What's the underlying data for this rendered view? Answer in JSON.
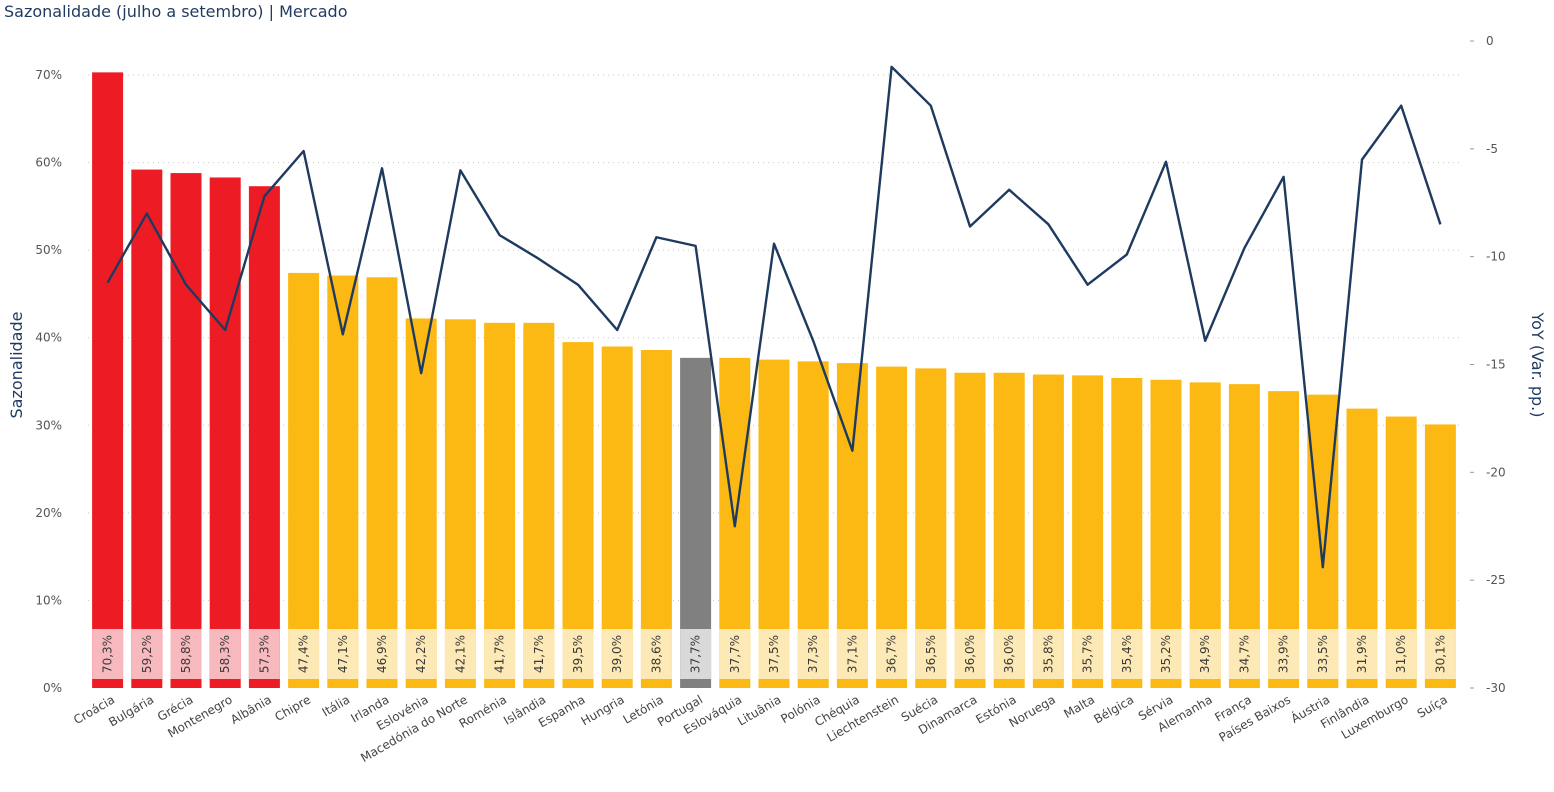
{
  "title": "Sazonalidade (julho a setembro) | Mercado",
  "colors": {
    "high": "#ED1C24",
    "normal": "#FDB913",
    "highlight": "#808080",
    "line": "#1E3A5F",
    "label_bg_high": "#F7B9BE",
    "label_bg_normal": "#FDE9B5",
    "label_bg_highlight": "#D9D9D9"
  },
  "chart_data": {
    "type": "bar",
    "combo": "bar+line (dual axis)",
    "ylabel": "Sazonalidade",
    "y2label": "YoY (Var. pp.)",
    "ylim": [
      0,
      70
    ],
    "yticks": [
      "0%",
      "10%",
      "20%",
      "30%",
      "40%",
      "50%",
      "60%",
      "70%"
    ],
    "y2lim": [
      -30,
      0
    ],
    "y2ticks": [
      "0",
      "-5",
      "-10",
      "-15",
      "-20",
      "-25",
      "-30"
    ],
    "grid": true,
    "categories": [
      "Croácia",
      "Bulgária",
      "Grécia",
      "Montenegro",
      "Albânia",
      "Chipre",
      "Itália",
      "Irlanda",
      "Eslovénia",
      "Macedónia do Norte",
      "Roménia",
      "Islândia",
      "Espanha",
      "Hungria",
      "Letónia",
      "Portugal",
      "Eslováquia",
      "Lituânia",
      "Polónia",
      "Chéquia",
      "Liechtenstein",
      "Suécia",
      "Dinamarca",
      "Estónia",
      "Noruega",
      "Malta",
      "Bélgica",
      "Sérvia",
      "Alemanha",
      "França",
      "Países Baixos",
      "Áustria",
      "Finlândia",
      "Luxemburgo",
      "Suíça"
    ],
    "series": [
      {
        "type": "bar",
        "axis": "left",
        "values": [
          70.3,
          59.2,
          58.8,
          58.3,
          57.3,
          47.4,
          47.1,
          46.9,
          42.2,
          42.1,
          41.7,
          41.7,
          39.5,
          39.0,
          38.6,
          37.7,
          37.7,
          37.5,
          37.3,
          37.1,
          36.7,
          36.5,
          36.0,
          36.0,
          35.8,
          35.7,
          35.4,
          35.2,
          34.9,
          34.7,
          33.9,
          33.5,
          31.9,
          31.0,
          30.1
        ],
        "labels": [
          "70,3%",
          "59,2%",
          "58,8%",
          "58,3%",
          "57,3%",
          "47,4%",
          "47,1%",
          "46,9%",
          "42,2%",
          "42,1%",
          "41,7%",
          "41,7%",
          "39,5%",
          "39,0%",
          "38,6%",
          "37,7%",
          "37,7%",
          "37,5%",
          "37,3%",
          "37,1%",
          "36,7%",
          "36,5%",
          "36,0%",
          "36,0%",
          "35,8%",
          "35,7%",
          "35,4%",
          "35,2%",
          "34,9%",
          "34,7%",
          "33,9%",
          "33,5%",
          "31,9%",
          "31,0%",
          "30,1%"
        ],
        "groups": [
          "high",
          "high",
          "high",
          "high",
          "high",
          "normal",
          "normal",
          "normal",
          "normal",
          "normal",
          "normal",
          "normal",
          "normal",
          "normal",
          "normal",
          "highlight",
          "normal",
          "normal",
          "normal",
          "normal",
          "normal",
          "normal",
          "normal",
          "normal",
          "normal",
          "normal",
          "normal",
          "normal",
          "normal",
          "normal",
          "normal",
          "normal",
          "normal",
          "normal",
          "normal"
        ]
      },
      {
        "type": "line",
        "axis": "right",
        "values": [
          -11.2,
          -8.0,
          -11.3,
          -13.4,
          -7.2,
          -5.1,
          -13.6,
          -5.9,
          -15.4,
          -6.0,
          -9.0,
          -10.1,
          -11.3,
          -13.4,
          -9.1,
          -9.5,
          -22.5,
          -9.4,
          -13.9,
          -19.0,
          -1.2,
          -3.0,
          -8.6,
          -6.9,
          -8.5,
          -11.3,
          -9.9,
          -5.6,
          -13.9,
          -9.6,
          -6.3,
          -24.4,
          -5.5,
          -3.0,
          -8.5
        ]
      }
    ]
  }
}
